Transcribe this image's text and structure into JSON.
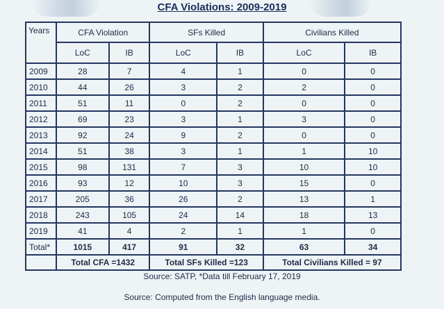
{
  "title": "CFA Violations: 2009-2019",
  "headers": {
    "years": "Years",
    "cfa_violation": "CFA Violation",
    "sfs_killed": "SFs Killed",
    "civilians_killed": "Civilians Killed",
    "loc": "LoC",
    "ib": "IB"
  },
  "rows": [
    {
      "year": "2009",
      "cfa_loc": "28",
      "cfa_ib": "7",
      "sf_loc": "4",
      "sf_ib": "1",
      "civ_loc": "0",
      "civ_ib": "0"
    },
    {
      "year": "2010",
      "cfa_loc": "44",
      "cfa_ib": "26",
      "sf_loc": "3",
      "sf_ib": "2",
      "civ_loc": "2",
      "civ_ib": "0"
    },
    {
      "year": "2011",
      "cfa_loc": "51",
      "cfa_ib": "11",
      "sf_loc": "0",
      "sf_ib": "2",
      "civ_loc": "0",
      "civ_ib": "0"
    },
    {
      "year": "2012",
      "cfa_loc": "69",
      "cfa_ib": "23",
      "sf_loc": "3",
      "sf_ib": "1",
      "civ_loc": "3",
      "civ_ib": "0"
    },
    {
      "year": "2013",
      "cfa_loc": "92",
      "cfa_ib": "24",
      "sf_loc": "9",
      "sf_ib": "2",
      "civ_loc": "0",
      "civ_ib": "0"
    },
    {
      "year": "2014",
      "cfa_loc": "51",
      "cfa_ib": "38",
      "sf_loc": "3",
      "sf_ib": "1",
      "civ_loc": "1",
      "civ_ib": "10"
    },
    {
      "year": "2015",
      "cfa_loc": "98",
      "cfa_ib": "131",
      "sf_loc": "7",
      "sf_ib": "3",
      "civ_loc": "10",
      "civ_ib": "10"
    },
    {
      "year": "2016",
      "cfa_loc": "93",
      "cfa_ib": "12",
      "sf_loc": "10",
      "sf_ib": "3",
      "civ_loc": "15",
      "civ_ib": "0"
    },
    {
      "year": "2017",
      "cfa_loc": "205",
      "cfa_ib": "36",
      "sf_loc": "26",
      "sf_ib": "2",
      "civ_loc": "13",
      "civ_ib": "1"
    },
    {
      "year": "2018",
      "cfa_loc": "243",
      "cfa_ib": "105",
      "sf_loc": "24",
      "sf_ib": "14",
      "civ_loc": "18",
      "civ_ib": "13"
    },
    {
      "year": "2019",
      "cfa_loc": "41",
      "cfa_ib": "4",
      "sf_loc": "2",
      "sf_ib": "1",
      "civ_loc": "1",
      "civ_ib": "0"
    }
  ],
  "total": {
    "label": "Total*",
    "cfa_loc": "1015",
    "cfa_ib": "417",
    "sf_loc": "91",
    "sf_ib": "32",
    "civ_loc": "63",
    "civ_ib": "34"
  },
  "grand_totals": {
    "cfa": "Total CFA =1432",
    "sfs": "Total SFs Killed =123",
    "civilians": "Total Civilians Killed = 97"
  },
  "source1": "Source: SATP, *Data till February 17, 2019",
  "source2": "Source: Computed from the English language media."
}
